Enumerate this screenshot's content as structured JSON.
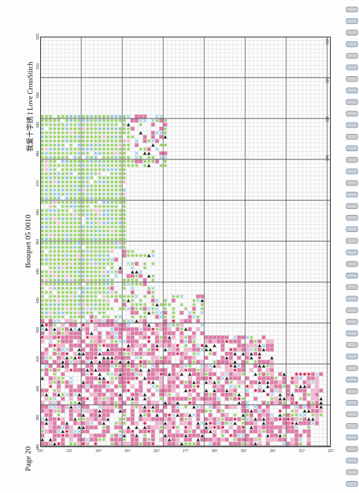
{
  "header": {
    "page_label": "Page 20",
    "pattern_name": "Bouquet 05 0010",
    "brand": "我爱十字绣 I Love CrossStitch"
  },
  "grid": {
    "top_ticks": [
      "380",
      "390",
      "400",
      "410",
      "420",
      "430",
      "440",
      "450",
      "460",
      "470",
      "480",
      "490",
      "500",
      "510",
      "520"
    ],
    "right_ticks": [
      "510",
      "520",
      "530",
      "540"
    ],
    "bottom_ticks": [
      "227",
      "237",
      "247",
      "257",
      "267",
      "277",
      "287",
      "297",
      "307",
      "317",
      "327"
    ]
  },
  "colors": {
    "green": "#9ad46a",
    "pink": "#e07aa8",
    "light_pink": "#f2b6cf",
    "blue": "#8cc8e8",
    "black": "#222222",
    "red": "#d8305a",
    "grid_line": "#b0b0b0",
    "major_line": "#555555"
  }
}
